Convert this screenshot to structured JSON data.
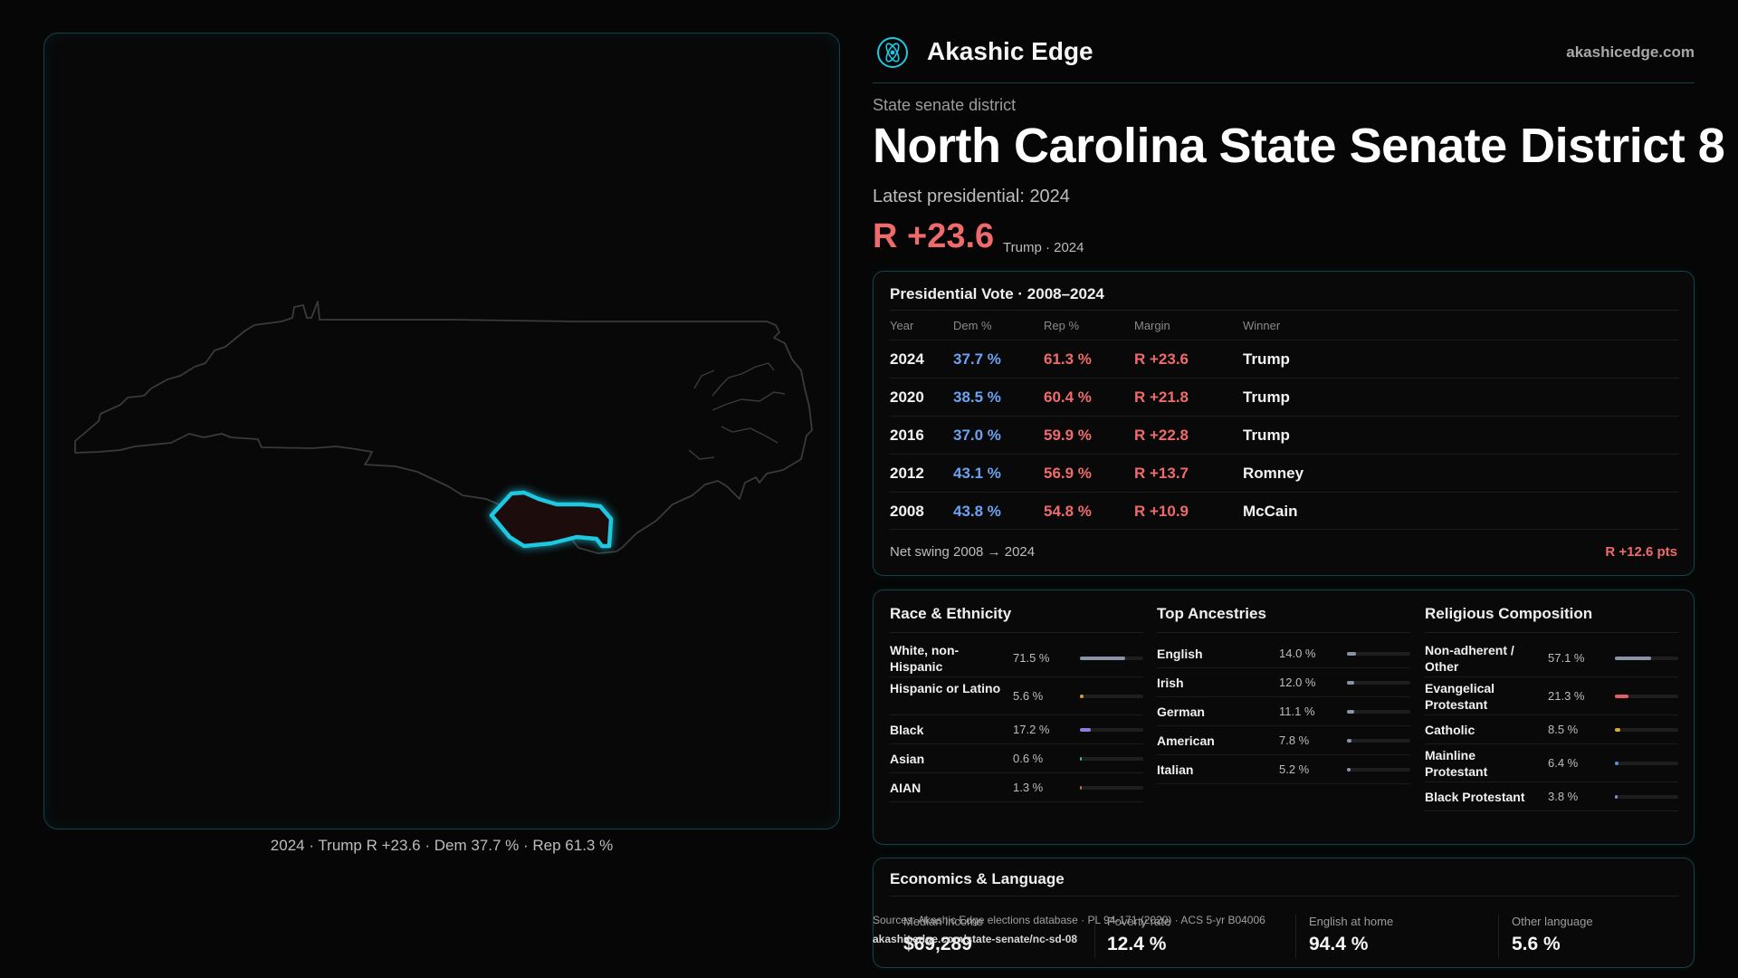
{
  "brand": {
    "name": "Akashic Edge",
    "url": "akashicedge.com",
    "logo": "atom-circle-icon",
    "accent": "#1ec8e0"
  },
  "map": {
    "caption": "2024 · Trump R +23.6 · Dem 37.7 % · Rep 61.3 %",
    "state_outline_color": "#3a3a3a",
    "district_stroke": "#1ec8e0",
    "district_fill": "#1d0c0c"
  },
  "district": {
    "kicker": "State senate district",
    "title": "North Carolina State Senate District 8",
    "latest_label": "Latest presidential: 2024",
    "margin": "R +23.6",
    "margin_note": "Trump · 2024"
  },
  "presidential": {
    "title": "Presidential Vote · 2008–2024",
    "columns": [
      "Year",
      "Dem %",
      "Rep %",
      "Margin",
      "Winner"
    ],
    "rows": [
      {
        "year": "2024",
        "dem": "37.7 %",
        "rep": "61.3 %",
        "margin": "R +23.6",
        "winner": "Trump"
      },
      {
        "year": "2020",
        "dem": "38.5 %",
        "rep": "60.4 %",
        "margin": "R +21.8",
        "winner": "Trump"
      },
      {
        "year": "2016",
        "dem": "37.0 %",
        "rep": "59.9 %",
        "margin": "R +22.8",
        "winner": "Trump"
      },
      {
        "year": "2012",
        "dem": "43.1 %",
        "rep": "56.9 %",
        "margin": "R +13.7",
        "winner": "Romney"
      },
      {
        "year": "2008",
        "dem": "43.8 %",
        "rep": "54.8 %",
        "margin": "R +10.9",
        "winner": "McCain"
      }
    ],
    "swing_label": "Net swing 2008 → 2024",
    "swing_value": "R +12.6 pts"
  },
  "race": {
    "title": "Race & Ethnicity",
    "items": [
      {
        "label": "White, non-Hispanic",
        "pct": "71.5 %",
        "value": 71.5,
        "color": "#8a93a6"
      },
      {
        "label": "Hispanic or Latino",
        "pct": "5.6 %",
        "value": 5.6,
        "color": "#d99a3a"
      },
      {
        "label": "Black",
        "pct": "17.2 %",
        "value": 17.2,
        "color": "#8f7ee0"
      },
      {
        "label": "Asian",
        "pct": "0.6 %",
        "value": 0.6,
        "color": "#3fb89a"
      },
      {
        "label": "AIAN",
        "pct": "1.3 %",
        "value": 1.3,
        "color": "#c0704a"
      }
    ]
  },
  "ancestry": {
    "title": "Top Ancestries",
    "items": [
      {
        "label": "English",
        "pct": "14.0 %",
        "value": 14.0,
        "color": "#8a93a6"
      },
      {
        "label": "Irish",
        "pct": "12.0 %",
        "value": 12.0,
        "color": "#8a93a6"
      },
      {
        "label": "German",
        "pct": "11.1 %",
        "value": 11.1,
        "color": "#8a93a6"
      },
      {
        "label": "American",
        "pct": "7.8 %",
        "value": 7.8,
        "color": "#8a93a6"
      },
      {
        "label": "Italian",
        "pct": "5.2 %",
        "value": 5.2,
        "color": "#8a93a6"
      }
    ]
  },
  "religion": {
    "title": "Religious Composition",
    "items": [
      {
        "label": "Non-adherent / Other",
        "pct": "57.1 %",
        "value": 57.1,
        "color": "#8a93a6"
      },
      {
        "label": "Evangelical Protestant",
        "pct": "21.3 %",
        "value": 21.3,
        "color": "#e0606a"
      },
      {
        "label": "Catholic",
        "pct": "8.5 %",
        "value": 8.5,
        "color": "#d9a93a"
      },
      {
        "label": "Mainline Protestant",
        "pct": "6.4 %",
        "value": 6.4,
        "color": "#5a8fe0"
      },
      {
        "label": "Black Protestant",
        "pct": "3.8 %",
        "value": 3.8,
        "color": "#8f7ee0"
      }
    ]
  },
  "economics": {
    "title": "Economics & Language",
    "stats": [
      {
        "label": "Median income",
        "value": "$69,289"
      },
      {
        "label": "Poverty rate",
        "value": "12.4 %"
      },
      {
        "label": "English at home",
        "value": "94.4 %"
      },
      {
        "label": "Other language",
        "value": "5.6 %"
      }
    ]
  },
  "source": {
    "text": "Sources: Akashic Edge elections database · PL 94-171 (2020) · ACS 5-yr B04006",
    "link": "akashicedge.com/state-senate/nc-sd-08"
  }
}
